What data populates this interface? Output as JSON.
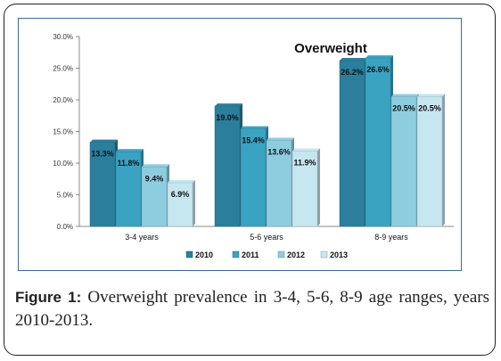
{
  "chart_data": {
    "type": "bar",
    "title": "Overweight",
    "categories": [
      "3-4 years",
      "5-6 years",
      "8-9 years"
    ],
    "series": [
      {
        "name": "2010",
        "values": [
          13.3,
          19.0,
          26.2
        ],
        "labels": [
          "13.3%",
          "19.0%",
          "26.2%"
        ],
        "color": "#2b7f9d"
      },
      {
        "name": "2011",
        "values": [
          11.8,
          15.4,
          26.6
        ],
        "labels": [
          "11.8%",
          "15.4%",
          "26.6%"
        ],
        "color": "#3aa3c1"
      },
      {
        "name": "2012",
        "values": [
          9.4,
          13.6,
          20.5
        ],
        "labels": [
          "9.4%",
          "13.6%",
          "20.5%"
        ],
        "color": "#8ecde0"
      },
      {
        "name": "2013",
        "values": [
          6.9,
          11.9,
          20.5
        ],
        "labels": [
          "6.9%",
          "11.9%",
          "20.5%"
        ],
        "color": "#c6e6f0"
      }
    ],
    "yticks": [
      "0.0%",
      "5.0%",
      "10.0%",
      "15.0%",
      "20.0%",
      "25.0%",
      "30.0%"
    ],
    "ylim": [
      0,
      30
    ],
    "grid": false,
    "legend_position": "bottom"
  },
  "caption": {
    "label": "Figure 1:",
    "text": " Overweight prevalence in 3-4, 5-6, 8-9 age ranges, years 2010-2013."
  }
}
